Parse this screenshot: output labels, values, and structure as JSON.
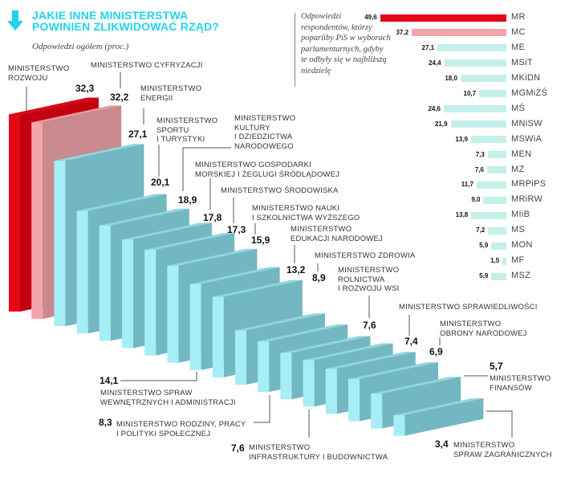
{
  "title_line1": "JAKIE INNE MINISTERSTWA",
  "title_line2": "POWINIEN ZLIKWIDOWAĆ RZĄD?",
  "subtitle": "Odpowiedzi ogółem (proc.)",
  "icons": {
    "title_arrow": "arrow-down-icon"
  },
  "colors": {
    "accent": "#22d3ea",
    "highlight": "#e30613",
    "secondary": "#f2a5aa",
    "default": "#a6eef5"
  },
  "chart_data": [
    {
      "type": "bar",
      "title": "Odpowiedzi ogółem (proc.)",
      "style": "3d-staircase",
      "categories": [
        "MR",
        "MC",
        "ME",
        "MSiT",
        "MKiDN",
        "MGMiŻŚ",
        "MŚ",
        "MNiSW",
        "MSWiA",
        "MEN",
        "MZ",
        "MRPiPS",
        "MRiRW",
        "MIiB",
        "MS",
        "MON",
        "MF",
        "MSZ"
      ],
      "labels": [
        "MINISTERSTWO\nROZWOJU",
        "MINISTERSTWO CYFRYZACJI",
        "MINISTERSTWO\nENERGII",
        "MINISTERSTWO\nSPORTU\nI TURYSTYKI",
        "MINISTERSTWO\nKULTURY\nI DZIEDZICTWA\nNARODOWEGO",
        "MINISTERSTWO GOSPODARKI\nMORSKIEJ I ŻEGLUGI ŚRÓDLĄDOWEJ",
        "MINISTERSTWO ŚRODOWISKA",
        "MINISTERSTWO NAUKI\nI SZKOLNICTWA WYŻSZEGO",
        "MINISTERSTWO SPRAW\nWEWNĘTRZNYCH I ADMINISTRACJI",
        "MINISTERSTWO\nEDUKACJI NARODOWEJ",
        "MINISTERSTWO ZDROWIA",
        "MINISTERSTWO RODZINY, PRACY\nI POLITYKI SPOŁECZNEJ",
        "MINISTERSTWO\nROLNICTWA\nI ROZWOJU WSI",
        "MINISTERSTWO\nINFRASTRUKTURY I BUDOWNICTWA",
        "MINISTERSTWO SPRAWIEDLIWOŚCI",
        "MINISTERSTWO\nOBRONY NARODOWEJ",
        "MINISTERSTWO\nFINANSÓW",
        "MINISTERSTWO\nSPRAW ZAGRANICZNYCH"
      ],
      "values": [
        32.3,
        32.2,
        27.1,
        20.1,
        18.9,
        17.8,
        17.3,
        15.9,
        14.1,
        13.2,
        8.9,
        8.3,
        7.6,
        7.6,
        7.4,
        6.9,
        5.7,
        3.4
      ],
      "value_labels": [
        "32,3",
        "32,2",
        "27,1",
        "20,1",
        "18,9",
        "17,8",
        "17,3",
        "15,9",
        "14,1",
        "13,2",
        "8,9",
        "8,3",
        "7,6",
        "7,6",
        "7,4",
        "6,9",
        "5,7",
        "3,4"
      ],
      "colors": [
        "#e30613",
        "#f2a5aa",
        "#a6eef5",
        "#a6eef5",
        "#a6eef5",
        "#a6eef5",
        "#a6eef5",
        "#a6eef5",
        "#a6eef5",
        "#a6eef5",
        "#a6eef5",
        "#a6eef5",
        "#a6eef5",
        "#a6eef5",
        "#a6eef5",
        "#a6eef5",
        "#a6eef5",
        "#a6eef5"
      ]
    },
    {
      "type": "bar",
      "orientation": "horizontal",
      "title": "Odpowiedzi respondentów, którzy poparliby PiS w wyborach parlamentarnych, gdyby te odbyły się w najbliższą niedzielę",
      "categories": [
        "MR",
        "MC",
        "ME",
        "MSiT",
        "MKiDN",
        "MGMiŻŚ",
        "MŚ",
        "MNiSW",
        "MSWiA",
        "MEN",
        "MZ",
        "MRPiPS",
        "MRiRW",
        "MIiB",
        "MS",
        "MON",
        "MF",
        "MSZ"
      ],
      "values": [
        49.6,
        37.2,
        27.1,
        24.4,
        18.0,
        10.7,
        24.6,
        21.9,
        13.9,
        7.3,
        7.6,
        11.7,
        9.0,
        13.8,
        7.2,
        5.9,
        1.5,
        5.9
      ],
      "value_labels": [
        "49,6",
        "37,2",
        "27,1",
        "24,4",
        "18,0",
        "10,7",
        "24,6",
        "21,9",
        "13,9",
        "7,3",
        "7,6",
        "11,7",
        "9,0",
        "13,8",
        "7,2",
        "5,9",
        "1,5",
        "5,9"
      ],
      "colors": [
        "#e30613",
        "#f2a5aa",
        "#c4f0ea",
        "#c4f0ea",
        "#c4f0ea",
        "#c4f0ea",
        "#c4f0ea",
        "#c4f0ea",
        "#c4f0ea",
        "#c4f0ea",
        "#c4f0ea",
        "#c4f0ea",
        "#c4f0ea",
        "#c4f0ea",
        "#c4f0ea",
        "#c4f0ea",
        "#c4f0ea",
        "#c4f0ea"
      ]
    }
  ]
}
